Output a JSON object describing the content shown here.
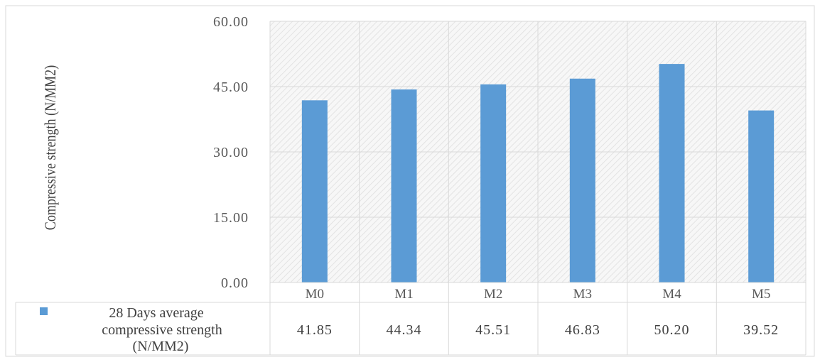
{
  "chart_data": {
    "type": "bar",
    "title": "",
    "xlabel": "",
    "ylabel": "Compressive strength (N/MM2)",
    "categories": [
      "M0",
      "M1",
      "M2",
      "M3",
      "M4",
      "M5"
    ],
    "series": [
      {
        "name": "28 Days average compressive strength (N/MM2)",
        "values": [
          41.85,
          44.34,
          45.51,
          46.83,
          50.2,
          39.52
        ],
        "value_labels": [
          "41.85",
          "44.34",
          "45.51",
          "46.83",
          "50.20",
          "39.52"
        ],
        "color": "#5B9BD5"
      }
    ],
    "legend_lines": [
      "28 Days average",
      "compressive strength",
      "(N/MM2)"
    ],
    "ylim": [
      0,
      60
    ],
    "yticks": [
      "0.00",
      "15.00",
      "30.00",
      "45.00",
      "60.00"
    ],
    "grid": true,
    "legend": "data-table"
  },
  "colors": {
    "bar": "#5B9BD5",
    "grid": "#d9d9d9",
    "plot_hatch": "#e6e6e6"
  }
}
